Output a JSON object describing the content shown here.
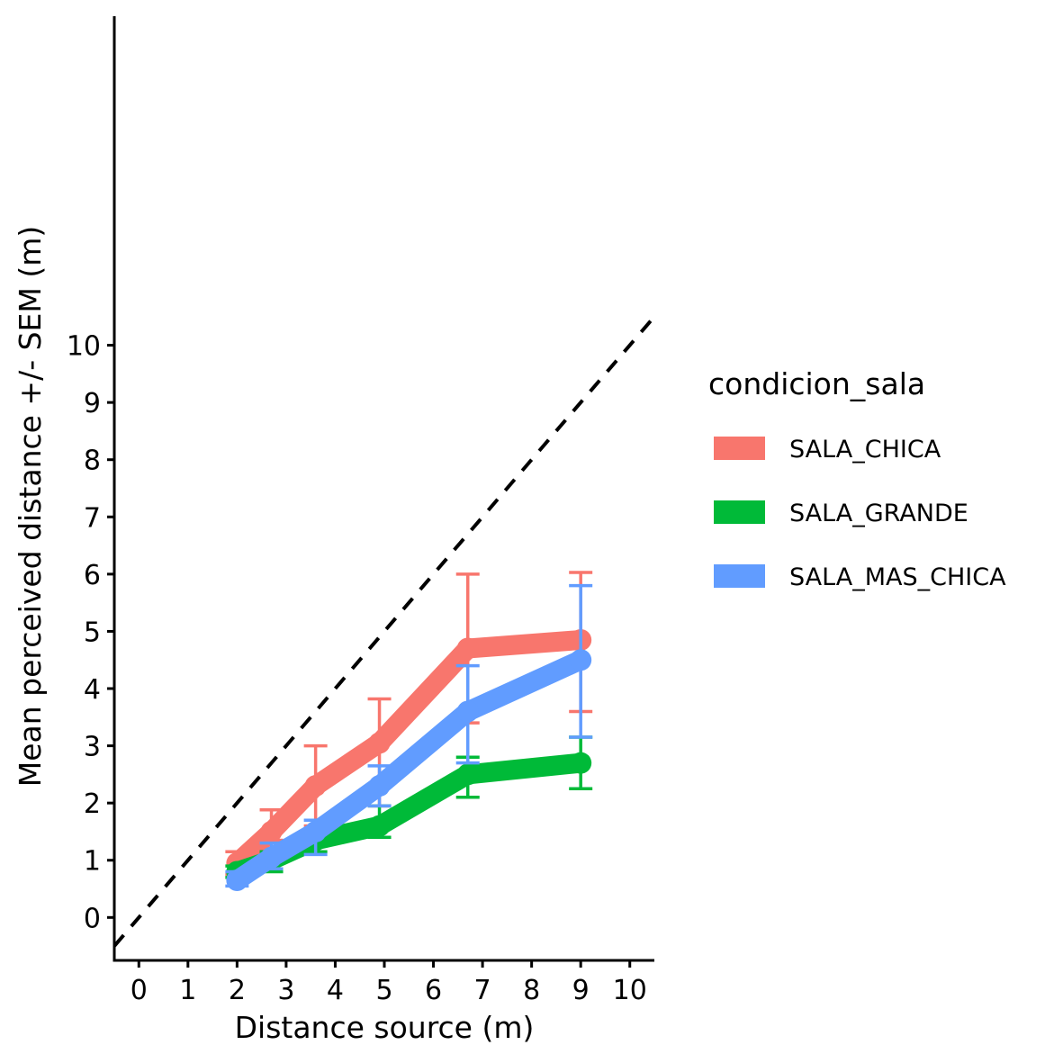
{
  "chart_data": {
    "type": "line",
    "title": "",
    "xlabel": "Distance source (m)",
    "ylabel": "Mean perceived distance +/- SEM (m)",
    "xlim": [
      -0.5,
      10.5
    ],
    "ylim": [
      -0.75,
      15.75
    ],
    "x_ticks": [
      "0",
      "1",
      "2",
      "3",
      "4",
      "5",
      "6",
      "7",
      "8",
      "9",
      "10"
    ],
    "y_ticks": [
      "0",
      "1",
      "2",
      "3",
      "4",
      "5",
      "6",
      "7",
      "8",
      "9",
      "10"
    ],
    "grid": false,
    "reference_line": {
      "style": "dashed",
      "color": "#000000",
      "equation": "y = x"
    },
    "legend": {
      "title": "condicion_sala",
      "position": "right",
      "entries": [
        "SALA_CHICA",
        "SALA_GRANDE",
        "SALA_MAS_CHICA"
      ]
    },
    "series": [
      {
        "name": "SALA_CHICA",
        "color": "#F8766D",
        "x": [
          2,
          2.7,
          3.6,
          4.9,
          6.7,
          9
        ],
        "y": [
          0.95,
          1.5,
          2.3,
          3.05,
          4.7,
          4.85
        ],
        "err_low": [
          0.75,
          1.35,
          1.6,
          1.95,
          3.4,
          3.6
        ],
        "err_high": [
          1.15,
          1.88,
          3.0,
          3.82,
          6.0,
          6.03
        ]
      },
      {
        "name": "SALA_GRANDE",
        "color": "#00BA38",
        "x": [
          2,
          2.7,
          3.6,
          4.9,
          6.7,
          9
        ],
        "y": [
          0.8,
          1.0,
          1.35,
          1.6,
          2.5,
          2.7
        ],
        "err_low": [
          0.7,
          0.8,
          1.15,
          1.4,
          2.1,
          2.25
        ],
        "err_high": [
          0.9,
          1.15,
          1.55,
          1.95,
          2.8,
          3.15
        ]
      },
      {
        "name": "SALA_MAS_CHICA",
        "color": "#619CFF",
        "x": [
          2,
          2.7,
          3.6,
          4.9,
          6.7,
          9
        ],
        "y": [
          0.65,
          1.05,
          1.5,
          2.3,
          3.6,
          4.5
        ],
        "err_low": [
          0.55,
          0.85,
          1.1,
          1.95,
          2.7,
          3.15
        ],
        "err_high": [
          0.8,
          1.3,
          1.7,
          2.65,
          4.4,
          5.8
        ]
      }
    ]
  }
}
